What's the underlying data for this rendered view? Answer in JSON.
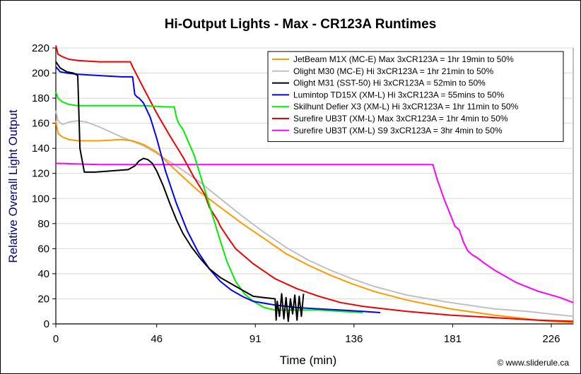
{
  "chart_data": {
    "type": "line",
    "title": "Hi-Output Lights - Max - CR123A Runtimes",
    "xlabel": "Time (min)",
    "ylabel": "Relative Overall Light Output",
    "xlim": [
      0,
      236
    ],
    "ylim": [
      0,
      220
    ],
    "xticks": [
      0,
      46,
      91,
      136,
      181,
      226
    ],
    "yticks": [
      0,
      20,
      40,
      60,
      80,
      100,
      120,
      140,
      160,
      180,
      200,
      220
    ],
    "legend_position": "top-right",
    "credit": "© www.sliderule.ca",
    "series": [
      {
        "name": "JetBeam M1X (MC-E) Max 3xCR123A = 1hr 19min to 50%",
        "color": "#FF9900",
        "x": [
          0,
          1,
          3,
          6,
          10,
          20,
          30,
          35,
          40,
          46,
          55,
          65,
          75,
          85,
          95,
          105,
          115,
          125,
          135,
          145,
          160,
          180,
          200,
          215,
          225,
          236
        ],
        "y": [
          162,
          152,
          149,
          147,
          146,
          146,
          147,
          146,
          143,
          137,
          122,
          106,
          93,
          80,
          68,
          56,
          47,
          39,
          32,
          26,
          19,
          12,
          7,
          4,
          2,
          1
        ]
      },
      {
        "name": "Olight M30 (MC-E) Hi 3xCR123A = 1hr 21min to 50%",
        "color": "#C0C0C0",
        "x": [
          0,
          1,
          3,
          6,
          10,
          14,
          20,
          30,
          40,
          46,
          55,
          65,
          75,
          85,
          95,
          105,
          115,
          125,
          135,
          145,
          160,
          180,
          200,
          215,
          225,
          236
        ],
        "y": [
          170,
          162,
          159,
          161,
          162,
          161,
          157,
          149,
          142,
          136,
          126,
          114,
          100,
          86,
          73,
          61,
          51,
          43,
          36,
          30,
          23,
          17,
          12,
          10,
          8,
          6
        ]
      },
      {
        "name": "Olight M31 (SST-50) Hi 3xCR123A = 52min to 50%",
        "color": "#000000",
        "x": [
          0,
          2,
          5,
          8,
          10,
          11,
          13,
          18,
          25,
          33,
          36,
          38,
          40,
          42,
          44,
          46,
          49,
          52,
          55,
          58,
          62,
          66,
          70,
          75,
          80,
          85,
          90,
          95,
          100,
          100.5,
          101,
          102,
          103,
          104,
          105,
          106,
          107,
          108,
          109,
          110,
          111,
          112,
          113
        ],
        "y": [
          209,
          204,
          201,
          200,
          198,
          140,
          121,
          121,
          122,
          123,
          126,
          130,
          132,
          131,
          128,
          122,
          110,
          96,
          83,
          72,
          61,
          52,
          44,
          37,
          32,
          27,
          22,
          21,
          20,
          3,
          18,
          6,
          24,
          4,
          21,
          2,
          20,
          8,
          23,
          3,
          22,
          6,
          24
        ]
      },
      {
        "name": "Lumintop TD15X (XM-L) Hi 3xCR123A = 55mins to 50%",
        "color": "#0000FF",
        "x": [
          0,
          2,
          5,
          10,
          20,
          30,
          35,
          36,
          37,
          38,
          40,
          43,
          46,
          50,
          55,
          60,
          65,
          70,
          75,
          80,
          85,
          90,
          100,
          110,
          120,
          130,
          140,
          148
        ],
        "y": [
          205,
          201,
          200,
          199,
          198,
          197,
          197,
          183,
          181,
          180,
          176,
          165,
          148,
          122,
          96,
          74,
          57,
          44,
          34,
          27,
          22,
          18,
          15,
          13,
          12,
          11,
          10,
          9
        ]
      },
      {
        "name": "Skilhunt Defier X3 (XM-L) Hi 3xCR123A = 1hr 11min to 50%",
        "color": "#00EE00",
        "x": [
          0,
          1,
          3,
          6,
          10,
          20,
          30,
          40,
          50,
          54,
          55,
          56,
          58,
          60,
          63,
          66,
          70,
          74,
          78,
          82,
          86,
          90,
          95,
          100,
          110,
          120,
          130,
          140
        ],
        "y": [
          185,
          180,
          177,
          175,
          174,
          174,
          174,
          174,
          173,
          173,
          165,
          160,
          155,
          147,
          135,
          118,
          95,
          72,
          50,
          34,
          24,
          18,
          13,
          11,
          11,
          11,
          10,
          9
        ]
      },
      {
        "name": "Surefire UB3T (XM-L) Max 3xCR123A = 1hr 4min to 50%",
        "color": "#EE0000",
        "x": [
          0,
          1,
          3,
          6,
          10,
          20,
          30,
          34,
          35,
          40,
          46,
          52,
          58,
          63,
          68,
          70,
          74,
          75,
          78,
          82,
          90,
          100,
          110,
          120,
          130,
          140,
          150,
          160,
          180,
          200,
          220,
          236
        ],
        "y": [
          222,
          215,
          213,
          211,
          210,
          209,
          209,
          209,
          205,
          188,
          168,
          150,
          133,
          117,
          103,
          93,
          82,
          78,
          70,
          60,
          48,
          36,
          28,
          22,
          17,
          14,
          12,
          10,
          7,
          5,
          3,
          2
        ]
      },
      {
        "name": "Surefire UB3T (XM-L) S9 3xCR123A = 3hr 4min to 50%",
        "color": "#FF00FF",
        "x": [
          0,
          20,
          50,
          100,
          150,
          172,
          174,
          177,
          180,
          182,
          184,
          186,
          188,
          190,
          192,
          195,
          200,
          210,
          220,
          230,
          236
        ],
        "y": [
          128,
          127,
          127,
          127,
          127,
          127,
          115,
          100,
          87,
          78,
          75,
          65,
          58,
          55,
          53,
          49,
          43,
          33,
          26,
          21,
          17
        ]
      }
    ]
  }
}
